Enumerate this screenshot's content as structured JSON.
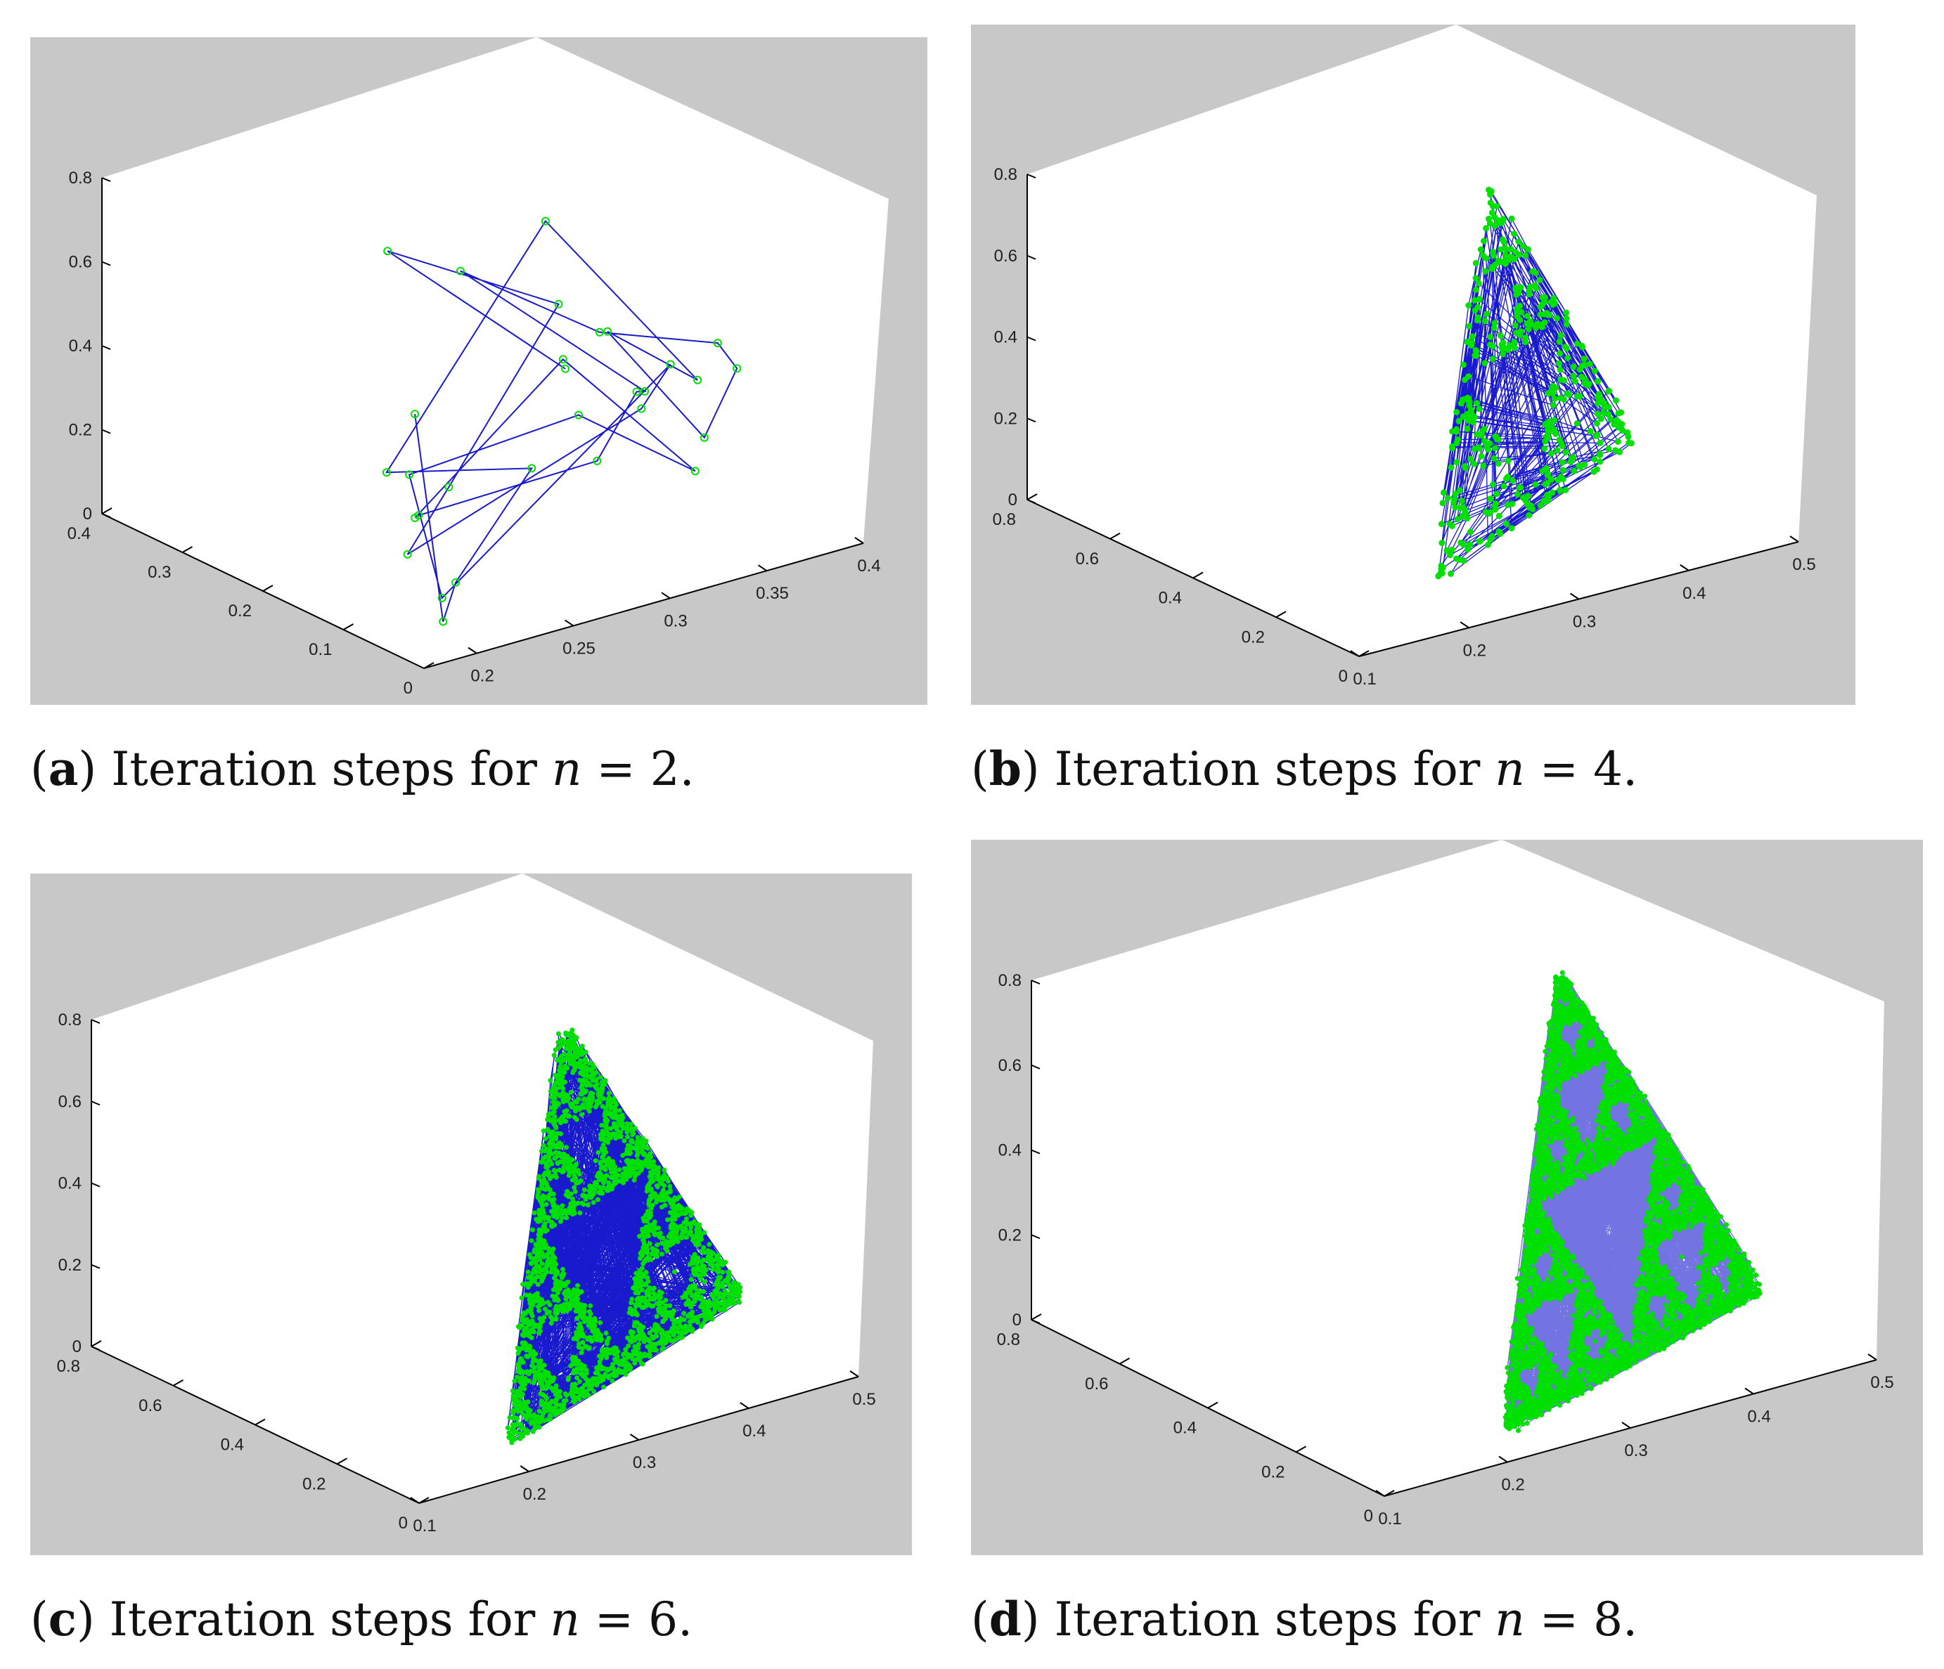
{
  "colors": {
    "panel_bg": "#c8c8c8",
    "axes_face": "#ffffff",
    "edge": "#000000",
    "line": "#0000c8",
    "marker": "#00e000"
  },
  "panels": [
    {
      "id": "a",
      "caption": {
        "letter": "a",
        "text": " Iteration steps for ",
        "var": "n",
        "eq": " = ",
        "value": "2",
        "end": "."
      },
      "chart_data": {
        "type": "line",
        "style": "3D line plot with circle markers, blue lines and green markers",
        "z_ticks": [
          "0",
          "0.2",
          "0.4",
          "0.6",
          "0.8"
        ],
        "x_ticks": [
          "0.2",
          "0.25",
          "0.3",
          "0.35",
          "0.4"
        ],
        "y_ticks": [
          "0",
          "0.1",
          "0.2",
          "0.3",
          "0.4"
        ],
        "xlim": [
          0.15,
          0.4
        ],
        "ylim": [
          0,
          0.4
        ],
        "zlim": [
          0,
          0.8
        ],
        "grid": false,
        "iterations": 2
      }
    },
    {
      "id": "b",
      "caption": {
        "letter": "b",
        "text": " Iteration steps for ",
        "var": "n",
        "eq": " = ",
        "value": "4",
        "end": "."
      },
      "chart_data": {
        "type": "line",
        "style": "3D line plot with circle markers, blue lines and green markers",
        "z_ticks": [
          "0",
          "0.2",
          "0.4",
          "0.6",
          "0.8"
        ],
        "x_ticks": [
          "0.1",
          "0.2",
          "0.3",
          "0.4",
          "0.5"
        ],
        "y_ticks": [
          "0",
          "0.2",
          "0.4",
          "0.6",
          "0.8"
        ],
        "xlim": [
          0.1,
          0.5
        ],
        "ylim": [
          0,
          0.8
        ],
        "zlim": [
          0,
          0.8
        ],
        "grid": false,
        "iterations": 4
      }
    },
    {
      "id": "c",
      "caption": {
        "letter": "c",
        "text": " Iteration steps for ",
        "var": "n",
        "eq": " = ",
        "value": "6",
        "end": "."
      },
      "chart_data": {
        "type": "line",
        "style": "3D line plot with circle markers, blue lines and green markers",
        "z_ticks": [
          "0",
          "0.2",
          "0.4",
          "0.6",
          "0.8"
        ],
        "x_ticks": [
          "0.1",
          "0.2",
          "0.3",
          "0.4",
          "0.5"
        ],
        "y_ticks": [
          "0",
          "0.2",
          "0.4",
          "0.6",
          "0.8"
        ],
        "xlim": [
          0.1,
          0.5
        ],
        "ylim": [
          0,
          0.8
        ],
        "zlim": [
          0,
          0.8
        ],
        "grid": false,
        "iterations": 6
      }
    },
    {
      "id": "d",
      "caption": {
        "letter": "d",
        "text": " Iteration steps for ",
        "var": "n",
        "eq": " = ",
        "value": "8",
        "end": "."
      },
      "chart_data": {
        "type": "line",
        "style": "3D line plot with circle markers, blue lines and green markers",
        "z_ticks": [
          "0",
          "0.2",
          "0.4",
          "0.6",
          "0.8"
        ],
        "x_ticks": [
          "0.1",
          "0.2",
          "0.3",
          "0.4",
          "0.5"
        ],
        "y_ticks": [
          "0",
          "0.2",
          "0.4",
          "0.6",
          "0.8"
        ],
        "xlim": [
          0.1,
          0.5
        ],
        "ylim": [
          0,
          0.8
        ],
        "zlim": [
          0,
          0.8
        ],
        "grid": false,
        "iterations": 8
      }
    }
  ]
}
